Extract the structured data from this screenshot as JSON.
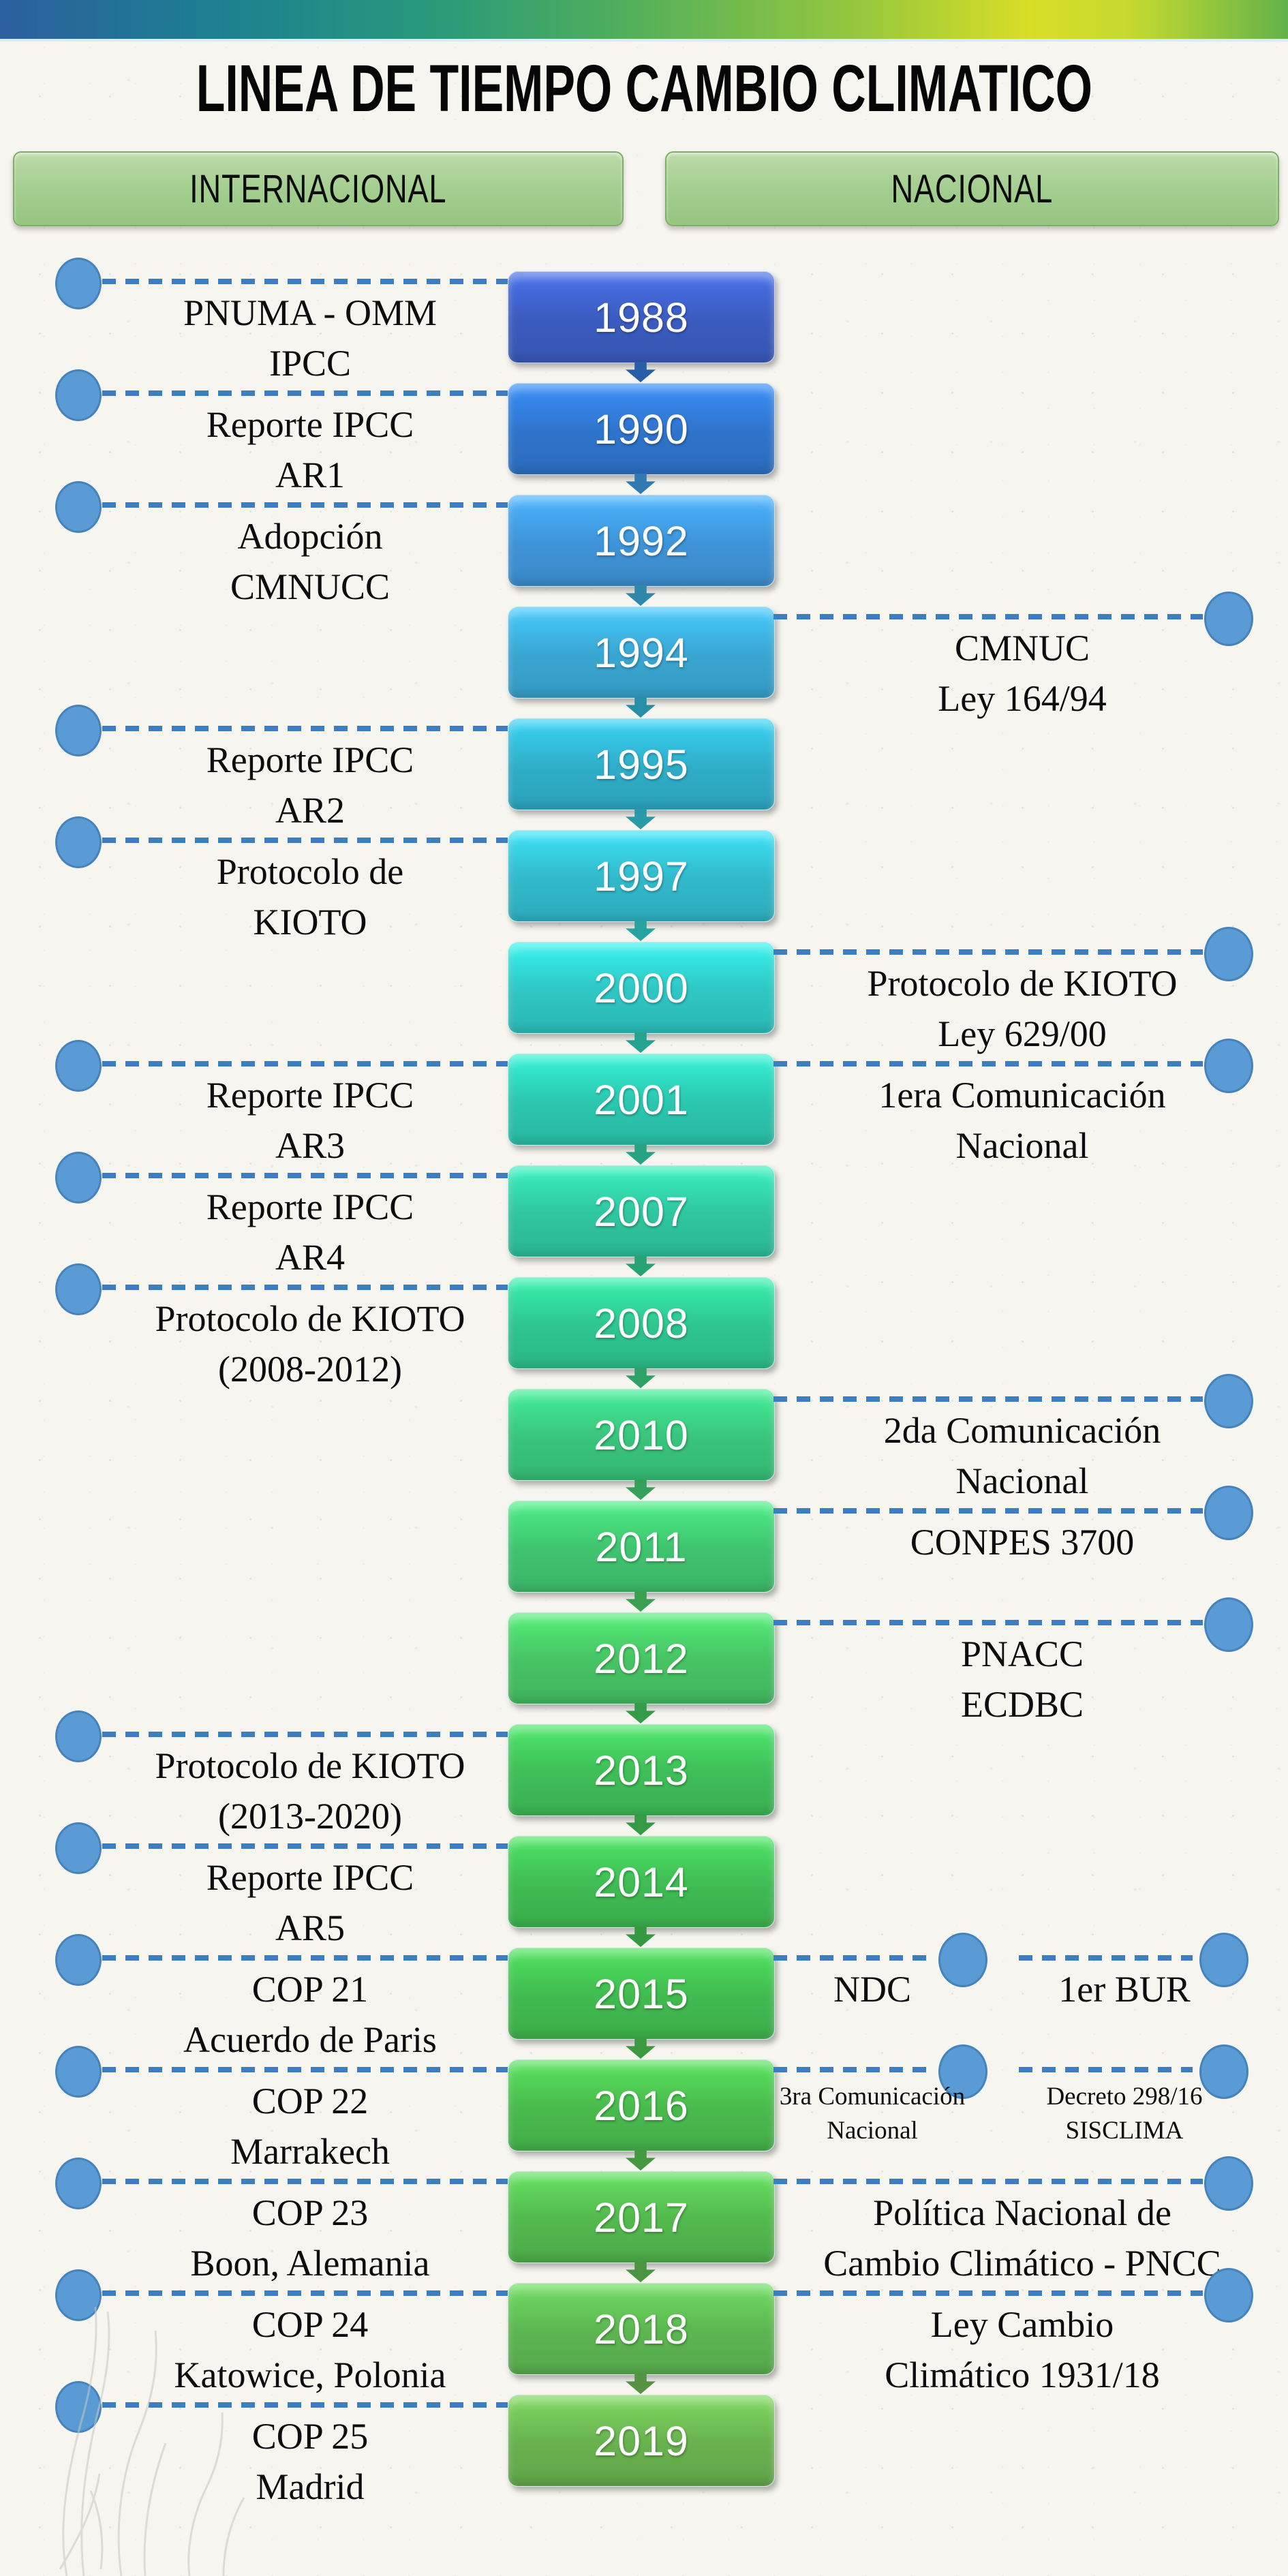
{
  "page": {
    "title": "LINEA DE TIEMPO CAMBIO CLIMATICO"
  },
  "header": {
    "column_left": "INTERNACIONAL",
    "column_right": "NACIONAL"
  },
  "colors": {
    "top_bar_gradient": [
      "#2b5f9e",
      "#1d7e91",
      "#27987b",
      "#4fae5c",
      "#9cc93b",
      "#d9de26",
      "#63b24a"
    ],
    "header_button_fill": "#a6cf92",
    "header_button_border": "#7fae67",
    "connector_dash": "#3e7dc0",
    "node_fill": "#5b9bd5",
    "node_border": "#4583bd",
    "year_text": "#ffffff",
    "event_text": "#0d0d0d"
  },
  "timeline": {
    "rows": [
      {
        "year": "1988",
        "color": "#3b5cc0",
        "left": [
          "PNUMA - OMM",
          "IPCC"
        ]
      },
      {
        "year": "1990",
        "color": "#2f74cc",
        "left": [
          "Reporte IPCC",
          "AR1"
        ]
      },
      {
        "year": "1992",
        "color": "#3e94d8",
        "left": [
          "Adopción",
          "CMNUCC"
        ]
      },
      {
        "year": "1994",
        "color": "#39a6d2",
        "right": [
          {
            "variant": "full",
            "lines": [
              "CMNUC",
              "Ley 164/94"
            ]
          }
        ]
      },
      {
        "year": "1995",
        "color": "#2faec9",
        "left": [
          "Reporte IPCC",
          "AR2"
        ]
      },
      {
        "year": "1997",
        "color": "#31bacb",
        "left": [
          "Protocolo de",
          "KIOTO"
        ]
      },
      {
        "year": "2000",
        "color": "#2ec7c4",
        "right": [
          {
            "variant": "full",
            "lines": [
              "Protocolo de KIOTO",
              "Ley 629/00"
            ]
          }
        ]
      },
      {
        "year": "2001",
        "color": "#2bc7af",
        "left": [
          "Reporte IPCC",
          "AR3"
        ],
        "right": [
          {
            "variant": "full",
            "lines": [
              "1era Comunicación",
              "Nacional"
            ]
          }
        ]
      },
      {
        "year": "2007",
        "color": "#2fc69e",
        "left": [
          "Reporte IPCC",
          "AR4"
        ]
      },
      {
        "year": "2008",
        "color": "#2ec68f",
        "left": [
          "Protocolo de KIOTO",
          "(2008-2012)"
        ]
      },
      {
        "year": "2010",
        "color": "#38c57c",
        "right": [
          {
            "variant": "full",
            "lines": [
              "2da Comunicación",
              "Nacional"
            ]
          }
        ]
      },
      {
        "year": "2011",
        "color": "#3fc46f",
        "right": [
          {
            "variant": "full",
            "lines": [
              "CONPES 3700"
            ]
          }
        ]
      },
      {
        "year": "2012",
        "color": "#46c363",
        "right": [
          {
            "variant": "full",
            "lines": [
              "PNACC",
              "ECDBC"
            ]
          }
        ]
      },
      {
        "year": "2013",
        "color": "#3fbe58",
        "left": [
          "Protocolo de KIOTO",
          "(2013-2020)"
        ]
      },
      {
        "year": "2014",
        "color": "#3fbc53",
        "left": [
          "Reporte IPCC",
          "AR5"
        ]
      },
      {
        "year": "2015",
        "color": "#41bb4f",
        "left": [
          "COP 21",
          "Acuerdo de Paris"
        ],
        "right": [
          {
            "variant": "pair-left",
            "lines": [
              "NDC"
            ]
          },
          {
            "variant": "pair-right",
            "lines": [
              "1er BUR"
            ]
          }
        ]
      },
      {
        "year": "2016",
        "color": "#49bb4d",
        "left": [
          "COP 22",
          "Marrakech"
        ],
        "right": [
          {
            "variant": "pair-left",
            "size": "small",
            "lines": [
              "3ra Comunicación",
              "Nacional"
            ]
          },
          {
            "variant": "pair-right",
            "size": "small",
            "lines": [
              "Decreto 298/16",
              "SISCLIMA"
            ]
          }
        ]
      },
      {
        "year": "2017",
        "color": "#53b94e",
        "left": [
          "COP 23",
          "Boon, Alemania"
        ],
        "right": [
          {
            "variant": "full",
            "lines": [
              "Política Nacional de",
              "Cambio Climático - PNCC"
            ]
          }
        ]
      },
      {
        "year": "2018",
        "color": "#5cb650",
        "left": [
          "COP 24",
          "Katowice, Polonia"
        ],
        "right": [
          {
            "variant": "full",
            "lines": [
              "Ley Cambio",
              "Climático 1931/18"
            ]
          }
        ]
      },
      {
        "year": "2019",
        "color": "#68b24f",
        "left": [
          "COP 25",
          "Madrid"
        ]
      }
    ]
  }
}
